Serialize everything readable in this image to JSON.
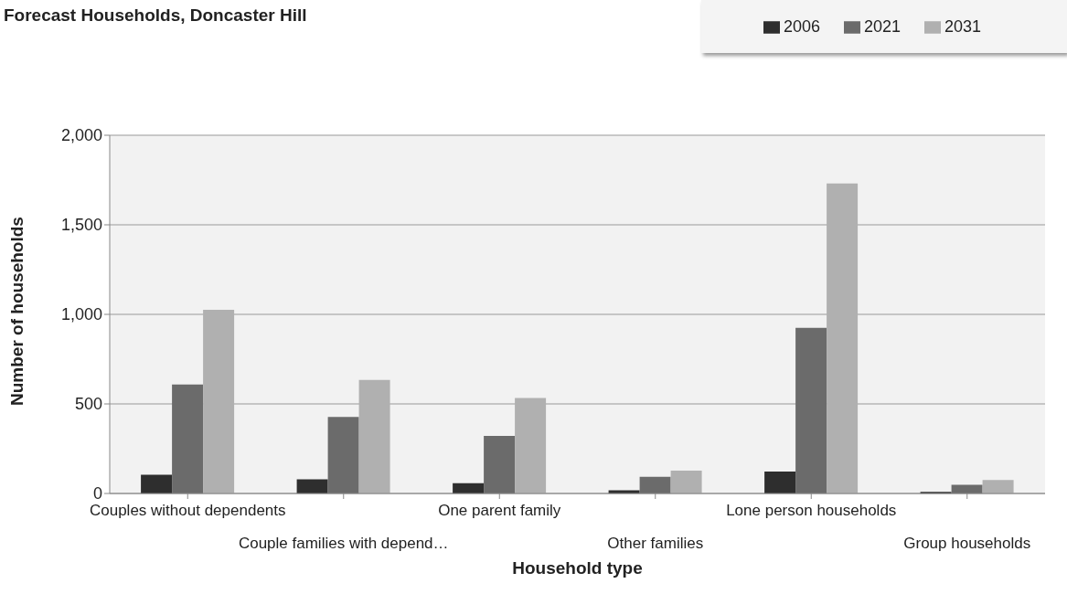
{
  "chart_data": {
    "type": "bar",
    "title": "Forecast Households, Doncaster Hill",
    "xlabel": "Household type",
    "ylabel": "Number of households",
    "categories": [
      "Couples without dependents",
      "Couple families with depend…",
      "One parent family",
      "Other families",
      "Lone person households",
      "Group households"
    ],
    "series": [
      {
        "name": "2006",
        "color": "#2e2e2e",
        "values": [
          105,
          79,
          57,
          18,
          123,
          9
        ]
      },
      {
        "name": "2021",
        "color": "#6b6b6b",
        "values": [
          608,
          427,
          322,
          93,
          925,
          48
        ]
      },
      {
        "name": "2031",
        "color": "#b0b0b0",
        "values": [
          1026,
          634,
          533,
          128,
          1731,
          75
        ]
      }
    ],
    "ylim": [
      0,
      2000
    ],
    "yticks": [
      {
        "value": 0,
        "label": "0"
      },
      {
        "value": 500,
        "label": "500"
      },
      {
        "value": 1000,
        "label": "1,000"
      },
      {
        "value": 1500,
        "label": "1,500"
      },
      {
        "value": 2000,
        "label": "2,000"
      }
    ],
    "grid": "y",
    "legend": "top right"
  }
}
